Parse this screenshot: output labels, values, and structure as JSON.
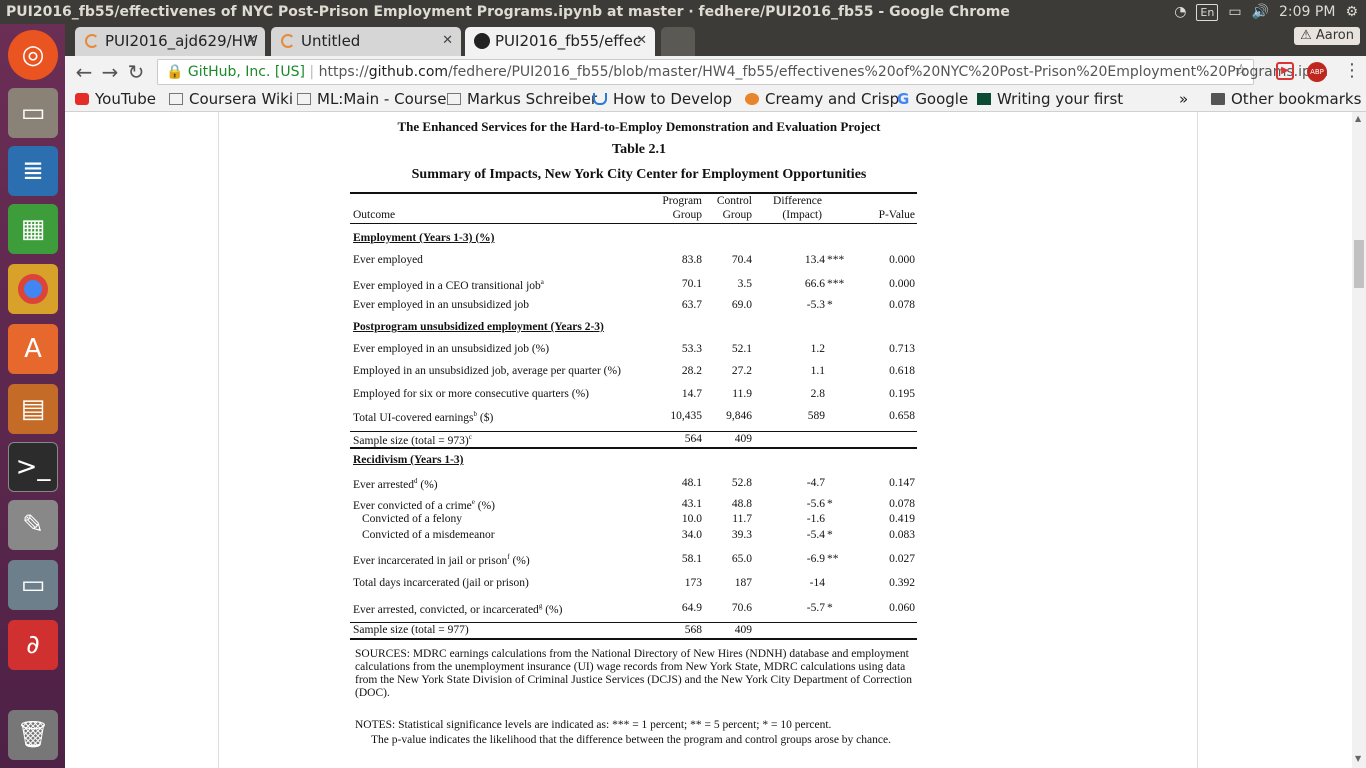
{
  "window_title": "PUI2016_fb55/effectivenes of NYC Post-Prison Employment Programs.ipynb at master · fedhere/PUI2016_fb55 - Google Chrome",
  "topbar": {
    "lang": "En",
    "time": "2:09 PM"
  },
  "tabs": [
    {
      "label": "PUI2016_ajd629/HW"
    },
    {
      "label": "Untitled"
    },
    {
      "label": "PUI2016_fb55/effec"
    }
  ],
  "profile": "Aaron",
  "address": {
    "secure_label": "GitHub, Inc. [US]",
    "url_prefix": "https://",
    "url_host": "github.com",
    "url_path": "/fedhere/PUI2016_fb55/blob/master/HW4_fb55/effectivenes%20of%20NYC%20Post-Prison%20Employment%20Programs.ipyn"
  },
  "bookmarks": [
    {
      "label": "YouTube"
    },
    {
      "label": "Coursera Wiki"
    },
    {
      "label": "ML:Main - Course"
    },
    {
      "label": "Markus Schreiber"
    },
    {
      "label": "How to Develop"
    },
    {
      "label": "Creamy and Crisp"
    },
    {
      "label": "Google"
    },
    {
      "label": "Writing your first"
    },
    {
      "label": "»"
    },
    {
      "label": "Other bookmarks"
    }
  ],
  "doc": {
    "heading1": "The Enhanced Services for the Hard-to-Employ Demonstration and Evaluation Project",
    "heading2": "Table 2.1",
    "heading3": "Summary of Impacts, New York City Center for Employment Opportunities",
    "cols": {
      "outcome": "Outcome",
      "prog1": "Program",
      "prog2": "Group",
      "ctrl1": "Control",
      "ctrl2": "Group",
      "diff1": "Difference",
      "diff2": "(Impact)",
      "p": "P-Value"
    },
    "rows": [
      {
        "t": "sec",
        "label": "Employment (Years 1-3) (%)"
      },
      {
        "t": "r",
        "label": "Ever employed",
        "p": "83.8",
        "c": "70.4",
        "d": "13.4",
        "s": "***",
        "v": "0.000"
      },
      {
        "t": "r",
        "label": "Ever employed in a CEO transitional job",
        "sup": "a",
        "p": "70.1",
        "c": "3.5",
        "d": "66.6",
        "s": "***",
        "v": "0.000"
      },
      {
        "t": "r",
        "label": "Ever employed in an unsubsidized job",
        "p": "63.7",
        "c": "69.0",
        "d": "-5.3",
        "s": "*",
        "v": "0.078"
      },
      {
        "t": "sec",
        "label": "Postprogram unsubsidized employment  (Years 2-3)"
      },
      {
        "t": "r",
        "label": "Ever employed in an unsubsidized job (%)",
        "p": "53.3",
        "c": "52.1",
        "d": "1.2",
        "s": "",
        "v": "0.713"
      },
      {
        "t": "r",
        "label": "Employed in an unsubsidized job, average per quarter (%)",
        "p": "28.2",
        "c": "27.2",
        "d": "1.1",
        "s": "",
        "v": "0.618"
      },
      {
        "t": "r",
        "label": "Employed for six or more consecutive quarters (%)",
        "p": "14.7",
        "c": "11.9",
        "d": "2.8",
        "s": "",
        "v": "0.195"
      },
      {
        "t": "r",
        "label": "Total UI-covered earnings",
        "sup": "b",
        "tail": " ($)",
        "p": "10,435",
        "c": "9,846",
        "d": "589",
        "s": "",
        "v": "0.658"
      },
      {
        "t": "ss",
        "label": "Sample size (total = 973)",
        "sup": "c",
        "p": "564",
        "c": "409"
      },
      {
        "t": "sec",
        "label": "Recidivism (Years 1-3)"
      },
      {
        "t": "r",
        "label": "Ever arrested",
        "sup": "d",
        "tail": " (%)",
        "p": "48.1",
        "c": "52.8",
        "d": "-4.7",
        "s": "",
        "v": "0.147"
      },
      {
        "t": "r",
        "label": "Ever convicted of a crime",
        "sup": "e",
        "tail": " (%)",
        "p": "43.1",
        "c": "48.8",
        "d": "-5.6",
        "s": "*",
        "v": "0.078"
      },
      {
        "t": "r",
        "label": "   Convicted of a felony",
        "p": "10.0",
        "c": "11.7",
        "d": "-1.6",
        "s": "",
        "v": "0.419"
      },
      {
        "t": "r",
        "label": "   Convicted of a misdemeanor",
        "p": "34.0",
        "c": "39.3",
        "d": "-5.4",
        "s": "*",
        "v": "0.083"
      },
      {
        "t": "r",
        "label": "Ever incarcerated in jail or prison",
        "sup": "f",
        "tail": " (%)",
        "p": "58.1",
        "c": "65.0",
        "d": "-6.9",
        "s": "**",
        "v": "0.027"
      },
      {
        "t": "r",
        "label": "Total days incarcerated (jail or prison)",
        "p": "173",
        "c": "187",
        "d": "-14",
        "s": "",
        "v": "0.392"
      },
      {
        "t": "r",
        "label": "Ever arrested, convicted, or incarcerated",
        "sup": "g",
        "tail": " (%)",
        "p": "64.9",
        "c": "70.6",
        "d": "-5.7",
        "s": "*",
        "v": "0.060"
      },
      {
        "t": "ss",
        "label": "Sample size (total = 977)",
        "p": "568",
        "c": "409"
      }
    ],
    "sources": "SOURCES: MDRC earnings calculations from the National Directory of New Hires (NDNH) database and employment calculations from the unemployment insurance (UI) wage records from New York State, MDRC calculations using data from the New York State Division of Criminal Justice Services (DCJS) and the New York City Department of Correction (DOC).",
    "notes1": "NOTES: Statistical significance levels are indicated as: *** = 1 percent; ** = 5 percent; * = 10 percent.",
    "notes2": "The p-value indicates the likelihood that the difference between the program and control groups arose by chance."
  }
}
